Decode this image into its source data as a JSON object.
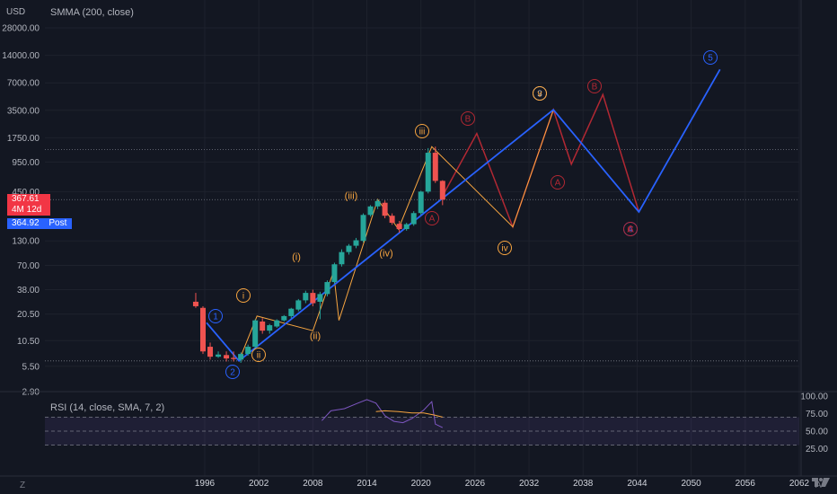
{
  "header": {
    "currency": "USD",
    "indicator_label": "SMMA (200, close)"
  },
  "rsi": {
    "label": "RSI (14, close, SMA, 7, 2)",
    "ticks": [
      "100.00",
      "75.00",
      "50.00",
      "25.00"
    ]
  },
  "price_tags": {
    "last_price": "367.61",
    "countdown": "4M 12d",
    "post_price": "364.92",
    "post_label": "Post"
  },
  "footer": {
    "left_icon": "Z",
    "right_icon": "A"
  },
  "colors": {
    "background": "#131722",
    "up": "#26a69a",
    "down": "#ef5350",
    "blue_wave": "#2962ff",
    "orange_wave": "#f7a540",
    "red_wave": "#b22833",
    "rsi_line": "#7e57c2",
    "rsi_ma": "#f7a540"
  },
  "chart_data": {
    "type": "candlestick",
    "title": "",
    "y_scale": "log",
    "y_ticks": [
      "28000.00",
      "14000.00",
      "7000.00",
      "3500.00",
      "1750.00",
      "950.00",
      "450.00",
      "130.00",
      "70.00",
      "38.00",
      "20.50",
      "10.50",
      "5.50",
      "2.90"
    ],
    "x_ticks": [
      "1996",
      "2002",
      "2008",
      "2014",
      "2020",
      "2026",
      "2032",
      "2038",
      "2044",
      "2050",
      "2056",
      "2062"
    ],
    "candles": [
      {
        "x": 1995.0,
        "o": 28,
        "h": 35,
        "l": 24,
        "c": 25
      },
      {
        "x": 1995.8,
        "o": 24,
        "h": 25,
        "l": 7.5,
        "c": 8
      },
      {
        "x": 1996.6,
        "o": 9,
        "h": 10,
        "l": 6.5,
        "c": 7
      },
      {
        "x": 1997.5,
        "o": 7,
        "h": 8,
        "l": 6.8,
        "c": 7.4
      },
      {
        "x": 1998.4,
        "o": 7.3,
        "h": 8,
        "l": 6.2,
        "c": 6.7
      },
      {
        "x": 1999.2,
        "o": 6.8,
        "h": 8,
        "l": 6.2,
        "c": 6.6
      },
      {
        "x": 2000.0,
        "o": 6.5,
        "h": 7.8,
        "l": 6.0,
        "c": 7.5
      },
      {
        "x": 2000.8,
        "o": 7.5,
        "h": 9.5,
        "l": 7.2,
        "c": 9
      },
      {
        "x": 2001.6,
        "o": 9,
        "h": 18,
        "l": 8.5,
        "c": 17.5
      },
      {
        "x": 2002.4,
        "o": 17,
        "h": 18.5,
        "l": 12.5,
        "c": 13.5
      },
      {
        "x": 2003.2,
        "o": 13.5,
        "h": 16,
        "l": 12.5,
        "c": 15.5
      },
      {
        "x": 2004.0,
        "o": 15,
        "h": 18,
        "l": 14.5,
        "c": 17.5
      },
      {
        "x": 2004.8,
        "o": 17.5,
        "h": 20,
        "l": 17,
        "c": 19.5
      },
      {
        "x": 2005.6,
        "o": 19.5,
        "h": 24,
        "l": 18.5,
        "c": 23.5
      },
      {
        "x": 2006.4,
        "o": 23,
        "h": 30,
        "l": 22,
        "c": 29
      },
      {
        "x": 2007.2,
        "o": 29,
        "h": 37,
        "l": 27,
        "c": 35
      },
      {
        "x": 2008.0,
        "o": 35,
        "h": 38,
        "l": 25,
        "c": 27
      },
      {
        "x": 2008.8,
        "o": 28,
        "h": 36,
        "l": 18,
        "c": 34
      },
      {
        "x": 2009.6,
        "o": 34,
        "h": 48,
        "l": 32,
        "c": 46
      },
      {
        "x": 2010.4,
        "o": 46,
        "h": 75,
        "l": 44,
        "c": 72
      },
      {
        "x": 2011.2,
        "o": 72,
        "h": 105,
        "l": 68,
        "c": 98
      },
      {
        "x": 2012.0,
        "o": 98,
        "h": 120,
        "l": 92,
        "c": 115
      },
      {
        "x": 2012.8,
        "o": 115,
        "h": 140,
        "l": 108,
        "c": 132
      },
      {
        "x": 2013.6,
        "o": 130,
        "h": 260,
        "l": 125,
        "c": 250
      },
      {
        "x": 2014.4,
        "o": 250,
        "h": 320,
        "l": 240,
        "c": 310
      },
      {
        "x": 2015.2,
        "o": 310,
        "h": 370,
        "l": 290,
        "c": 355
      },
      {
        "x": 2016.0,
        "o": 340,
        "h": 360,
        "l": 230,
        "c": 245
      },
      {
        "x": 2016.8,
        "o": 245,
        "h": 260,
        "l": 195,
        "c": 205
      },
      {
        "x": 2017.6,
        "o": 200,
        "h": 215,
        "l": 160,
        "c": 175
      },
      {
        "x": 2018.4,
        "o": 175,
        "h": 205,
        "l": 168,
        "c": 198
      },
      {
        "x": 2019.2,
        "o": 198,
        "h": 275,
        "l": 190,
        "c": 262
      },
      {
        "x": 2020.0,
        "o": 262,
        "h": 460,
        "l": 250,
        "c": 450
      },
      {
        "x": 2020.8,
        "o": 450,
        "h": 1350,
        "l": 430,
        "c": 1200
      },
      {
        "x": 2021.6,
        "o": 1200,
        "h": 1400,
        "l": 560,
        "c": 590
      },
      {
        "x": 2022.4,
        "o": 590,
        "h": 600,
        "l": 320,
        "c": 367.61
      }
    ],
    "wave_blue": {
      "points": [
        {
          "x": 1996.2,
          "y": 16.5
        },
        {
          "x": 1999.8,
          "y": 6.3
        },
        {
          "x": 2034.7,
          "y": 3550
        },
        {
          "x": 2044.2,
          "y": 270
        },
        {
          "x": 2053.2,
          "y": 9800
        }
      ],
      "labels": [
        "1",
        "2",
        "3",
        "4",
        "5"
      ]
    },
    "wave_orange": {
      "points": [
        {
          "x": 1999.8,
          "y": 6.3
        },
        {
          "x": 2001.8,
          "y": 19.5
        },
        {
          "x": 2008.0,
          "y": 13.5
        },
        {
          "x": 2010.3,
          "y": 60
        },
        {
          "x": 2010.9,
          "y": 17.5
        },
        {
          "x": 2015.2,
          "y": 370
        },
        {
          "x": 2017.5,
          "y": 175
        },
        {
          "x": 2021.2,
          "y": 1400
        },
        {
          "x": 2030.2,
          "y": 185
        },
        {
          "x": 2034.7,
          "y": 3550
        }
      ],
      "labels": [
        "i",
        "ii",
        "(i)",
        "(ii)",
        "(iii)",
        "(iv)",
        "iii",
        "iv",
        "v"
      ]
    },
    "wave_red": {
      "points": [
        {
          "x": 2022.5,
          "y": 420
        },
        {
          "x": 2026.2,
          "y": 1950
        },
        {
          "x": 2030.2,
          "y": 185
        },
        {
          "x": 2034.7,
          "y": 3550
        },
        {
          "x": 2036.7,
          "y": 900
        },
        {
          "x": 2040.2,
          "y": 5200
        },
        {
          "x": 2044.2,
          "y": 270
        }
      ],
      "labels": [
        "A",
        "B",
        "A",
        "B",
        "C",
        "A"
      ]
    },
    "rsi_values": [
      {
        "x": 2009.0,
        "y": 65
      },
      {
        "x": 2010.0,
        "y": 79
      },
      {
        "x": 2011.5,
        "y": 82
      },
      {
        "x": 2013.0,
        "y": 90
      },
      {
        "x": 2014.0,
        "y": 95
      },
      {
        "x": 2015.0,
        "y": 90
      },
      {
        "x": 2016.0,
        "y": 72
      },
      {
        "x": 2017.0,
        "y": 64
      },
      {
        "x": 2018.0,
        "y": 62
      },
      {
        "x": 2019.0,
        "y": 68
      },
      {
        "x": 2020.3,
        "y": 80
      },
      {
        "x": 2021.2,
        "y": 92
      },
      {
        "x": 2021.6,
        "y": 60
      },
      {
        "x": 2022.4,
        "y": 55
      }
    ],
    "rsi_ma_values": [
      {
        "x": 2015.0,
        "y": 78
      },
      {
        "x": 2016.0,
        "y": 79
      },
      {
        "x": 2017.5,
        "y": 78
      },
      {
        "x": 2019.0,
        "y": 76
      },
      {
        "x": 2020.3,
        "y": 76
      },
      {
        "x": 2021.5,
        "y": 73
      },
      {
        "x": 2022.4,
        "y": 70
      }
    ],
    "rsi_levels": [
      70,
      50,
      30
    ],
    "reference_lines": [
      {
        "y": 1300
      },
      {
        "y": 367.61
      },
      {
        "y": 6.3
      }
    ],
    "grid": true
  }
}
